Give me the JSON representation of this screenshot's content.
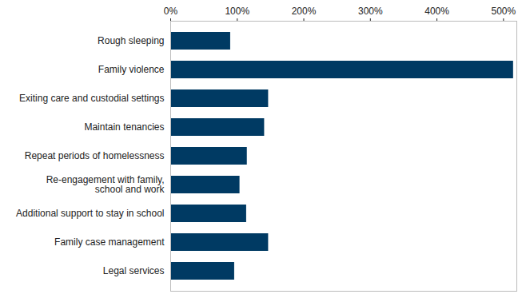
{
  "chart_data": {
    "type": "bar",
    "orientation": "horizontal",
    "categories": [
      "Rough sleeping",
      "Family violence",
      "Exiting care and custodial settings",
      "Maintain tenancies",
      "Repeat periods of homelessness",
      "Re-engagement with family,\nschool and work",
      "Additional support to stay in school",
      "Family case management",
      "Legal services"
    ],
    "values": [
      90,
      515,
      147,
      141,
      115,
      104,
      114,
      147,
      96
    ],
    "color": "#003a63",
    "xlim": [
      0,
      520
    ],
    "xticks": [
      {
        "value": 0,
        "label": "0%"
      },
      {
        "value": 100,
        "label": "100%"
      },
      {
        "value": 200,
        "label": "200%"
      },
      {
        "value": 300,
        "label": "300%"
      },
      {
        "value": 400,
        "label": "400%"
      },
      {
        "value": 500,
        "label": "500%"
      }
    ],
    "grid": false
  }
}
